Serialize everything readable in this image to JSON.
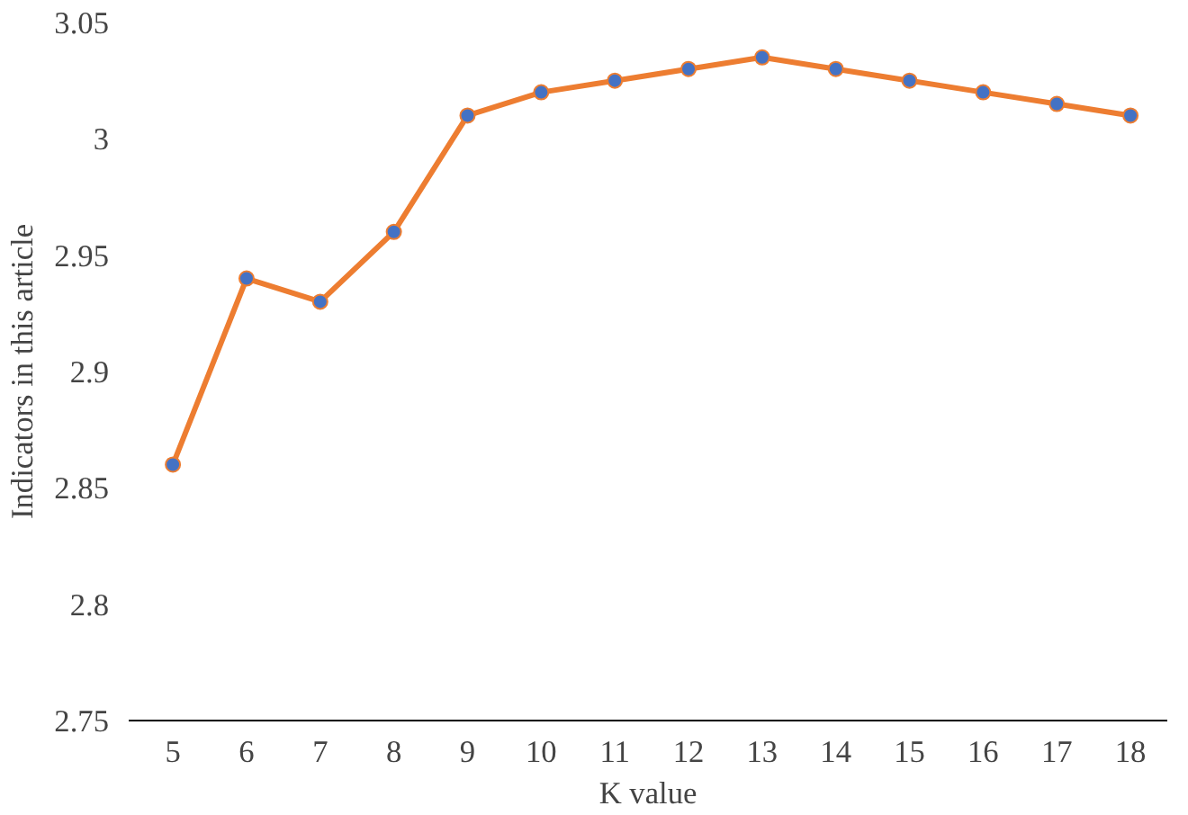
{
  "chart_data": {
    "type": "line",
    "xlabel": "K value",
    "ylabel": "Indicators in this article",
    "categories": [
      "5",
      "6",
      "7",
      "8",
      "9",
      "10",
      "11",
      "12",
      "13",
      "14",
      "15",
      "16",
      "17",
      "18"
    ],
    "values": [
      2.86,
      2.94,
      2.93,
      2.96,
      3.01,
      3.02,
      3.025,
      3.03,
      3.035,
      3.03,
      3.025,
      3.02,
      3.015,
      3.01
    ],
    "color": "#ed7d31",
    "colors": [
      "#4472c4",
      "#4472c4",
      "#4472c4",
      "#4472c4",
      "#4472c4",
      "#4472c4",
      "#4472c4",
      "#4472c4",
      "#4472c4",
      "#4472c4",
      "#4472c4",
      "#4472c4",
      "#4472c4",
      "#4472c4"
    ],
    "marker": "circle",
    "line_style": "solid",
    "ylim": [
      2.75,
      3.05
    ],
    "yticks": [
      {
        "value": 2.75,
        "label": "2.75"
      },
      {
        "value": 2.8,
        "label": "2.8"
      },
      {
        "value": 2.85,
        "label": "2.85"
      },
      {
        "value": 2.9,
        "label": "2.9"
      },
      {
        "value": 2.95,
        "label": "2.95"
      },
      {
        "value": 3,
        "label": "3"
      },
      {
        "value": 3.05,
        "label": "3.05"
      }
    ],
    "grid": false
  }
}
